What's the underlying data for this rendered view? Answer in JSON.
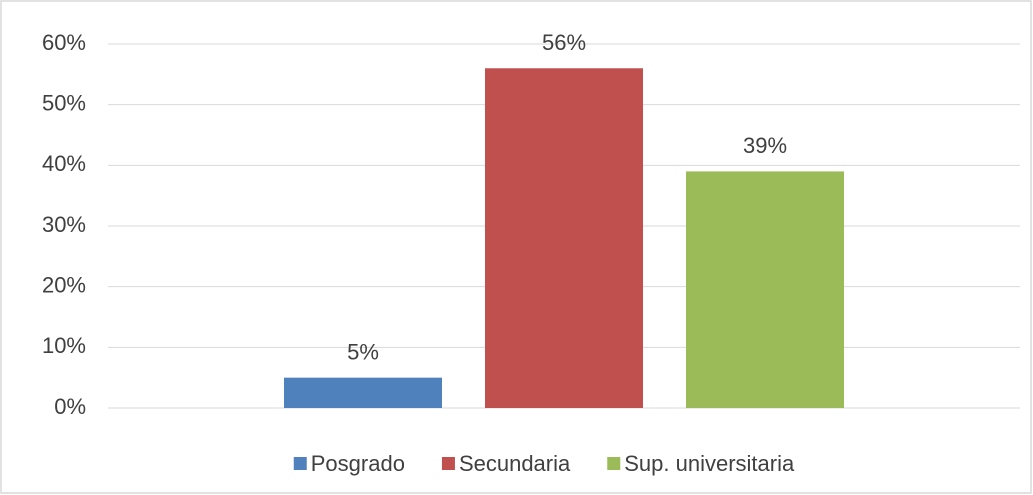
{
  "chart_data": {
    "type": "bar",
    "categories": [
      null
    ],
    "series": [
      {
        "name": "Posgrado",
        "color": "#4f81bd",
        "values": [
          5
        ],
        "value_labels": [
          "5%"
        ]
      },
      {
        "name": "Secundaria",
        "color": "#c0504d",
        "values": [
          56
        ],
        "value_labels": [
          "56%"
        ]
      },
      {
        "name": "Sup. universitaria",
        "color": "#9bbb59",
        "values": [
          39
        ],
        "value_labels": [
          "39%"
        ]
      }
    ],
    "ylim": [
      0,
      60
    ],
    "yticks": [
      {
        "value": 0,
        "label": "0%"
      },
      {
        "value": 10,
        "label": "10%"
      },
      {
        "value": 20,
        "label": "20%"
      },
      {
        "value": 30,
        "label": "30%"
      },
      {
        "value": 40,
        "label": "40%"
      },
      {
        "value": 50,
        "label": "50%"
      },
      {
        "value": 60,
        "label": "60%"
      }
    ],
    "grid": true,
    "legend": "bottom"
  }
}
